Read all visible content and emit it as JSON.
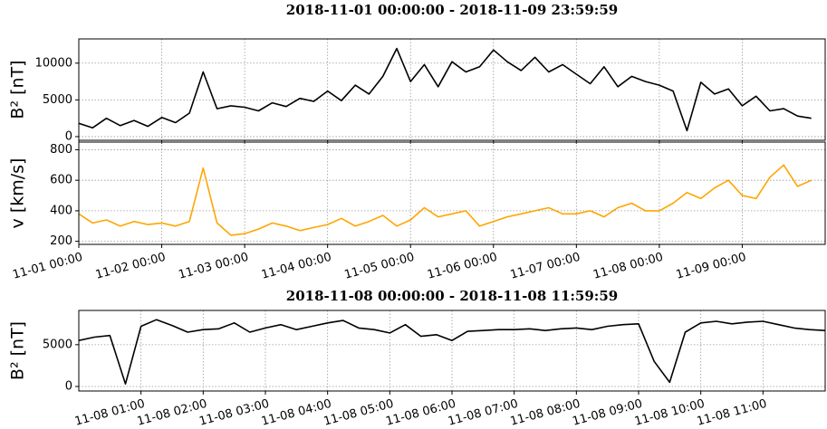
{
  "chart_data": [
    {
      "type": "line",
      "title": "2018-11-01 00:00:00 - 2018-11-09 23:59:59",
      "grid": true,
      "x": [
        "11-01 00:00",
        "11-01 04:00",
        "11-01 08:00",
        "11-01 12:00",
        "11-01 16:00",
        "11-01 20:00",
        "11-02 00:00",
        "11-02 04:00",
        "11-02 08:00",
        "11-02 12:00",
        "11-02 16:00",
        "11-02 20:00",
        "11-03 00:00",
        "11-03 04:00",
        "11-03 08:00",
        "11-03 12:00",
        "11-03 16:00",
        "11-03 20:00",
        "11-04 00:00",
        "11-04 04:00",
        "11-04 08:00",
        "11-04 12:00",
        "11-04 16:00",
        "11-04 20:00",
        "11-05 00:00",
        "11-05 04:00",
        "11-05 08:00",
        "11-05 12:00",
        "11-05 16:00",
        "11-05 20:00",
        "11-06 00:00",
        "11-06 04:00",
        "11-06 08:00",
        "11-06 12:00",
        "11-06 16:00",
        "11-06 20:00",
        "11-07 00:00",
        "11-07 04:00",
        "11-07 08:00",
        "11-07 12:00",
        "11-07 16:00",
        "11-07 20:00",
        "11-08 00:00",
        "11-08 04:00",
        "11-08 08:00",
        "11-08 12:00",
        "11-08 16:00",
        "11-08 20:00",
        "11-09 00:00",
        "11-09 04:00",
        "11-09 08:00",
        "11-09 12:00",
        "11-09 16:00",
        "11-09 20:00"
      ],
      "xlim": [
        "11-01 00:00",
        "11-10 00:00"
      ],
      "xticks": [
        {
          "value": "11-01 00:00",
          "label": "11-01 00:00"
        },
        {
          "value": "11-02 00:00",
          "label": "11-02 00:00"
        },
        {
          "value": "11-03 00:00",
          "label": "11-03 00:00"
        },
        {
          "value": "11-04 00:00",
          "label": "11-04 00:00"
        },
        {
          "value": "11-05 00:00",
          "label": "11-05 00:00"
        },
        {
          "value": "11-06 00:00",
          "label": "11-06 00:00"
        },
        {
          "value": "11-07 00:00",
          "label": "11-07 00:00"
        },
        {
          "value": "11-08 00:00",
          "label": "11-08 00:00"
        },
        {
          "value": "11-09 00:00",
          "label": "11-09 00:00"
        }
      ],
      "panels": [
        {
          "ylabel": "B² [nT]",
          "ylim": [
            -500,
            13300
          ],
          "yticks": [
            0,
            5000,
            10000
          ],
          "series": [
            {
              "color": "#000000",
              "values": [
                1800,
                1200,
                2500,
                1500,
                2200,
                1400,
                2600,
                1900,
                3200,
                8800,
                3800,
                4200,
                4000,
                3500,
                4600,
                4100,
                5200,
                4800,
                6200,
                4900,
                7000,
                5800,
                8200,
                12000,
                7500,
                9800,
                6800,
                10200,
                8800,
                9500,
                11800,
                10200,
                9000,
                10800,
                8800,
                9800,
                8500,
                7200,
                9500,
                6800,
                8200,
                7500,
                7000,
                6200,
                800,
                7400,
                5800,
                6500,
                4200,
                5500,
                3500,
                3800,
                2800,
                2500
              ]
            }
          ]
        },
        {
          "ylabel": "v [km/s]",
          "ylim": [
            180,
            850
          ],
          "yticks": [
            200,
            400,
            600,
            800
          ],
          "series": [
            {
              "color": "#ffa500",
              "values": [
                380,
                320,
                340,
                300,
                330,
                310,
                320,
                300,
                330,
                680,
                320,
                240,
                250,
                280,
                320,
                300,
                270,
                290,
                310,
                350,
                300,
                330,
                370,
                300,
                340,
                420,
                360,
                380,
                400,
                300,
                330,
                360,
                380,
                400,
                420,
                380,
                380,
                400,
                360,
                420,
                450,
                400,
                400,
                450,
                520,
                480,
                550,
                600,
                500,
                480,
                620,
                700,
                560,
                600
              ]
            }
          ]
        }
      ]
    },
    {
      "type": "line",
      "title": "2018-11-08 00:00:00 - 2018-11-08 11:59:59",
      "grid": true,
      "x": [
        "11-08 00:00",
        "11-08 00:15",
        "11-08 00:30",
        "11-08 00:45",
        "11-08 01:00",
        "11-08 01:15",
        "11-08 01:30",
        "11-08 01:45",
        "11-08 02:00",
        "11-08 02:15",
        "11-08 02:30",
        "11-08 02:45",
        "11-08 03:00",
        "11-08 03:15",
        "11-08 03:30",
        "11-08 03:45",
        "11-08 04:00",
        "11-08 04:15",
        "11-08 04:30",
        "11-08 04:45",
        "11-08 05:00",
        "11-08 05:15",
        "11-08 05:30",
        "11-08 05:45",
        "11-08 06:00",
        "11-08 06:15",
        "11-08 06:30",
        "11-08 06:45",
        "11-08 07:00",
        "11-08 07:15",
        "11-08 07:30",
        "11-08 07:45",
        "11-08 08:00",
        "11-08 08:15",
        "11-08 08:30",
        "11-08 08:45",
        "11-08 09:00",
        "11-08 09:15",
        "11-08 09:30",
        "11-08 09:45",
        "11-08 10:00",
        "11-08 10:15",
        "11-08 10:30",
        "11-08 10:45",
        "11-08 11:00",
        "11-08 11:15",
        "11-08 11:30",
        "11-08 11:45",
        "11-08 12:00"
      ],
      "xlim": [
        "11-08 00:00",
        "11-08 12:00"
      ],
      "xticks": [
        {
          "value": "11-08 01:00",
          "label": "11-08 01:00"
        },
        {
          "value": "11-08 02:00",
          "label": "11-08 02:00"
        },
        {
          "value": "11-08 03:00",
          "label": "11-08 03:00"
        },
        {
          "value": "11-08 04:00",
          "label": "11-08 04:00"
        },
        {
          "value": "11-08 05:00",
          "label": "11-08 05:00"
        },
        {
          "value": "11-08 06:00",
          "label": "11-08 06:00"
        },
        {
          "value": "11-08 07:00",
          "label": "11-08 07:00"
        },
        {
          "value": "11-08 08:00",
          "label": "11-08 08:00"
        },
        {
          "value": "11-08 09:00",
          "label": "11-08 09:00"
        },
        {
          "value": "11-08 10:00",
          "label": "11-08 10:00"
        },
        {
          "value": "11-08 11:00",
          "label": "11-08 11:00"
        }
      ],
      "panels": [
        {
          "ylabel": "B² [nT]",
          "ylim": [
            -540,
            9100
          ],
          "yticks": [
            0,
            5000
          ],
          "series": [
            {
              "color": "#000000",
              "values": [
                5500,
                5900,
                6100,
                300,
                7200,
                8000,
                7300,
                6500,
                6800,
                6900,
                7600,
                6500,
                7000,
                7400,
                6800,
                7200,
                7600,
                7900,
                7000,
                6800,
                6400,
                7400,
                6000,
                6200,
                5500,
                6600,
                6700,
                6800,
                6800,
                6900,
                6700,
                6900,
                7000,
                6800,
                7200,
                7400,
                7500,
                3000,
                500,
                6500,
                7600,
                7800,
                7500,
                7700,
                7800,
                7400,
                7000,
                6800,
                6700
              ]
            }
          ]
        }
      ]
    }
  ]
}
